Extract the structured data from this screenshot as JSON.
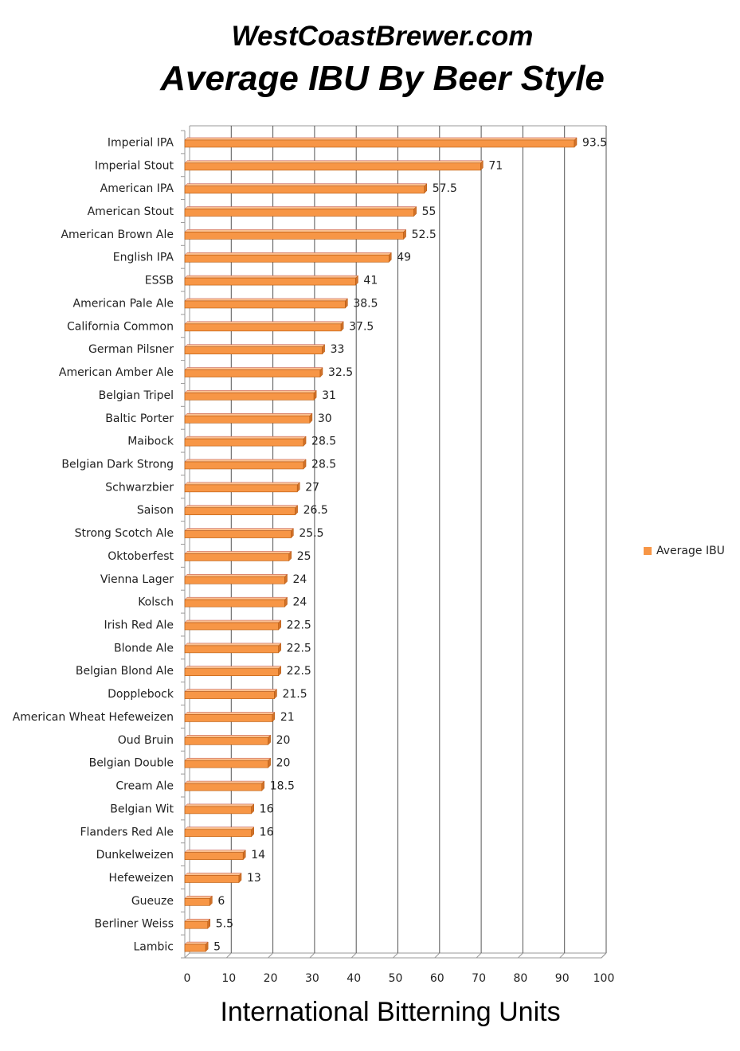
{
  "header": {
    "site": "WestCoastBrewer.com"
  },
  "chart_data": {
    "type": "bar",
    "orientation": "horizontal",
    "title": "Average IBU By Beer Style",
    "xlabel": "International Bitterning Units",
    "ylabel": "",
    "xlim": [
      0,
      100
    ],
    "xticks": [
      0,
      10,
      20,
      30,
      40,
      50,
      60,
      70,
      80,
      90,
      100
    ],
    "grid": true,
    "legend_position": "right",
    "bar_color": "#F79646",
    "categories": [
      "Imperial IPA",
      "Imperial Stout",
      "American IPA",
      "American Stout",
      "American Brown Ale",
      "English IPA",
      "ESSB",
      "American Pale Ale",
      "California Common",
      "German Pilsner",
      "American Amber Ale",
      "Belgian Tripel",
      "Baltic Porter",
      "Maibock",
      "Belgian Dark Strong",
      "Schwarzbier",
      "Saison",
      "Strong Scotch Ale",
      "Oktoberfest",
      "Vienna Lager",
      "Kolsch",
      "Irish Red Ale",
      "Blonde Ale",
      "Belgian Blond Ale",
      "Dopplebock",
      "American Wheat Hefeweizen",
      "Oud Bruin",
      "Belgian Double",
      "Cream Ale",
      "Belgian Wit",
      "Flanders Red Ale",
      "Dunkelweizen",
      "Hefeweizen",
      "Gueuze",
      "Berliner Weiss",
      "Lambic"
    ],
    "series": [
      {
        "name": "Average IBU",
        "values": [
          93.5,
          71,
          57.5,
          55,
          52.5,
          49,
          41,
          38.5,
          37.5,
          33,
          32.5,
          31,
          30,
          28.5,
          28.5,
          27,
          26.5,
          25.5,
          25,
          24,
          24,
          22.5,
          22.5,
          22.5,
          21.5,
          21,
          20,
          20,
          18.5,
          16,
          16,
          14,
          13,
          6,
          5.5,
          5
        ]
      }
    ]
  }
}
